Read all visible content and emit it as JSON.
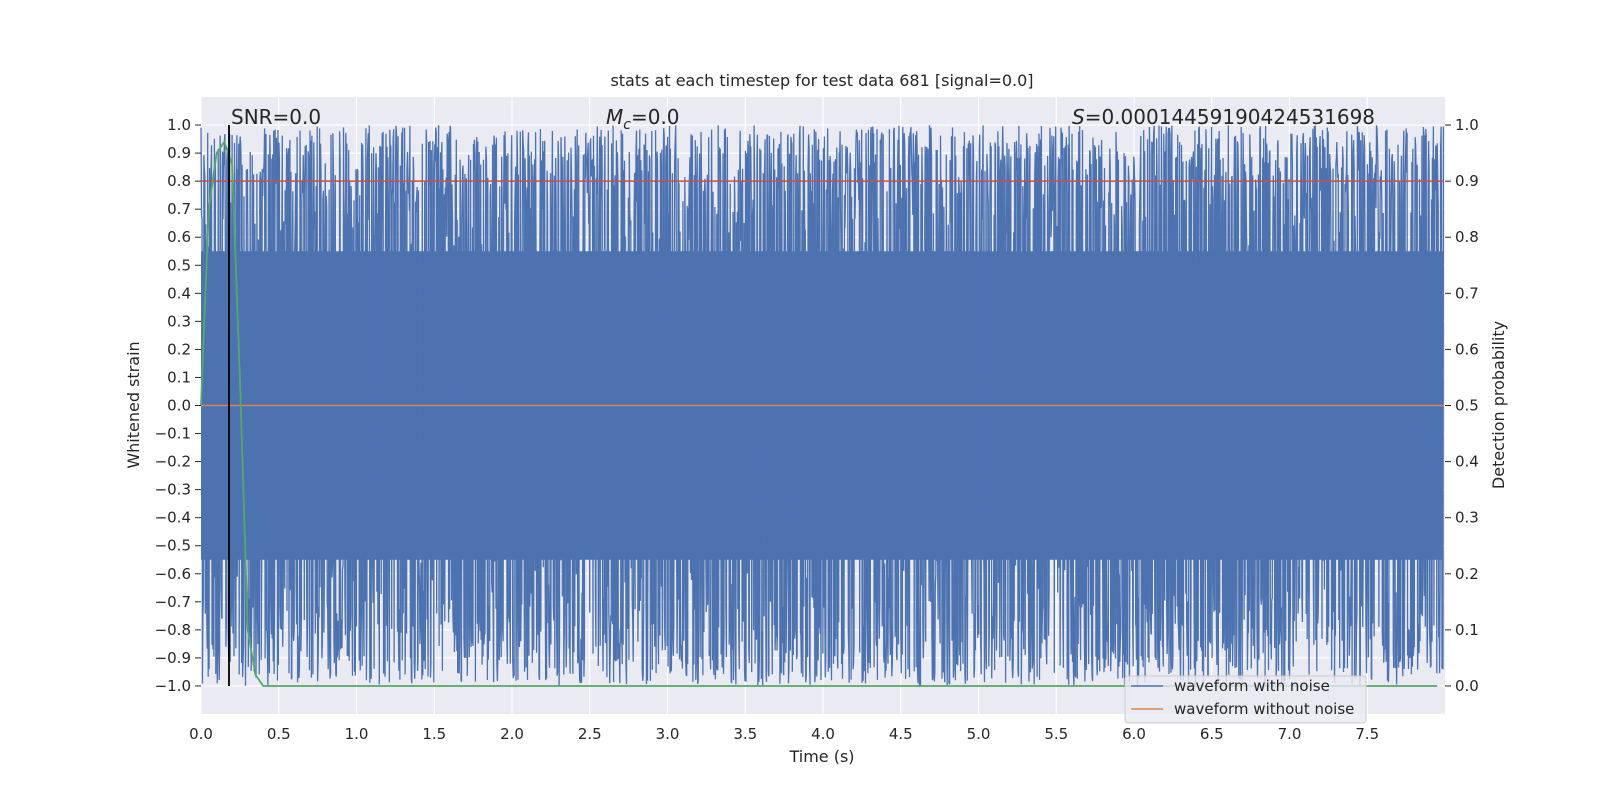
{
  "chart_data": {
    "type": "line",
    "title": "stats at each timestep for test data 681 [signal=0.0]",
    "xlabel": "Time (s)",
    "ylabel": "Whitened strain",
    "y2label": "Detection probability",
    "xlim": [
      0.0,
      8.0
    ],
    "ylim": [
      -1.1,
      1.1
    ],
    "y2lim": [
      -0.05,
      1.05
    ],
    "x_ticks": [
      "0.0",
      "0.5",
      "1.0",
      "1.5",
      "2.0",
      "2.5",
      "3.0",
      "3.5",
      "4.0",
      "4.5",
      "5.0",
      "5.5",
      "6.0",
      "6.5",
      "7.0",
      "7.5"
    ],
    "y_ticks": [
      "1.0",
      "0.9",
      "0.8",
      "0.7",
      "0.6",
      "0.5",
      "0.4",
      "0.3",
      "0.2",
      "0.1",
      "0.0",
      "−0.1",
      "−0.2",
      "−0.3",
      "−0.4",
      "−0.5",
      "−0.6",
      "−0.7",
      "−0.8",
      "−0.9",
      "−1.0"
    ],
    "y2_ticks": [
      "1.0",
      "0.9",
      "0.8",
      "0.7",
      "0.6",
      "0.5",
      "0.4",
      "0.3",
      "0.2",
      "0.1",
      "0.0"
    ],
    "grid": true,
    "legend_position": "bottom-right",
    "annotations": {
      "snr": "SNR=0.0",
      "mc_symbol": "M",
      "mc_subscript": "c",
      "mc_value": "=0.0",
      "s_symbol": "S",
      "s_value": "=0.00014459190424531698"
    },
    "series": [
      {
        "name": "waveform with noise",
        "color": "#4c72b0",
        "note_range": [
          -1.0,
          1.0
        ],
        "duration_s": 7.99
      },
      {
        "name": "waveform without noise",
        "color": "#dd8452",
        "x": [
          0.0,
          7.99
        ],
        "y": [
          0.0,
          0.0
        ]
      },
      {
        "color": "#c44e52",
        "axis": "right",
        "x": [
          0.0,
          7.99
        ],
        "y": [
          0.9,
          0.9
        ]
      },
      {
        "color": "#55a868",
        "axis": "right",
        "x": [
          0.0,
          0.05,
          0.1,
          0.15,
          0.2,
          0.25,
          0.3,
          0.35,
          0.4,
          1.0,
          2.0,
          3.0,
          4.0,
          5.0,
          6.0,
          7.0,
          7.95
        ],
        "y": [
          0.5,
          0.85,
          0.95,
          0.97,
          0.93,
          0.55,
          0.1,
          0.02,
          0.0,
          0.0,
          0.0,
          0.0,
          0.0,
          0.0,
          0.0,
          0.0,
          0.0
        ]
      },
      {
        "color": "#000000",
        "type": "vline",
        "x": 0.18
      }
    ]
  }
}
